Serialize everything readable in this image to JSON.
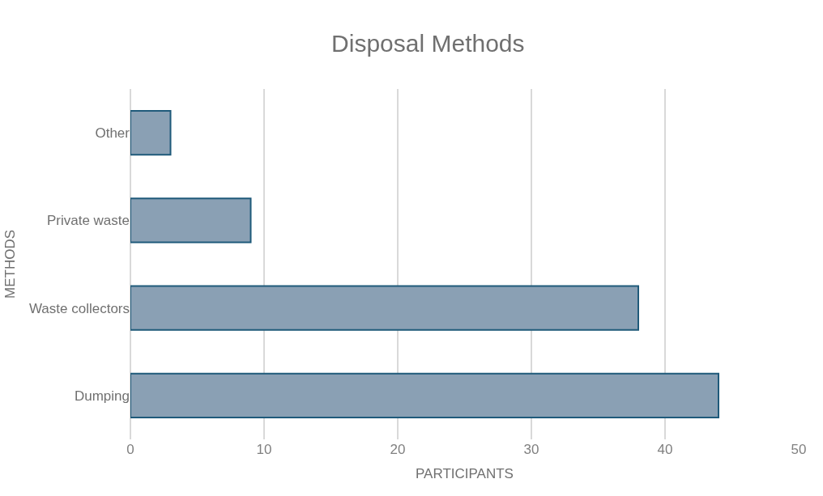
{
  "chart_data": {
    "type": "bar",
    "orientation": "horizontal",
    "title": "Disposal Methods",
    "xlabel": "PARTICIPANTS",
    "ylabel": "METHODS",
    "categories": [
      "Other",
      "Private waste",
      "Waste collectors",
      "Dumping"
    ],
    "values": [
      3,
      9,
      38,
      44
    ],
    "color": "#8aa0b4",
    "xlim": [
      0,
      50
    ],
    "xticks": [
      0,
      10,
      20,
      30,
      40,
      50
    ],
    "grid": "x"
  }
}
